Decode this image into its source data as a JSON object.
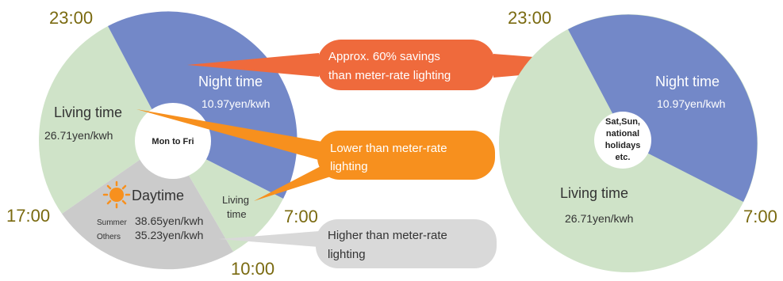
{
  "colors": {
    "night": "#7388c8",
    "living": "#cfe3c8",
    "daytime": "#cbcbcb",
    "callout_savings": "#ef6a3c",
    "callout_lower": "#f7901e",
    "callout_higher": "#d9d9d9",
    "hour_text": "#7a6a10",
    "sun": "#f7901e",
    "moon": "#f6d93c"
  },
  "left_dial": {
    "center_label": "Mon to Fri",
    "hours": {
      "h23": "23:00",
      "h17": "17:00",
      "h7": "7:00",
      "h10": "10:00"
    },
    "night": {
      "label": "Night time",
      "rate": "10.97yen/kwh"
    },
    "living_evening": {
      "label": "Living time",
      "rate": "26.71yen/kwh"
    },
    "living_morning": {
      "label_line1": "Living",
      "label_line2": "time"
    },
    "daytime": {
      "label": "Daytime",
      "summer_label": "Summer",
      "summer_rate": "38.65yen/kwh",
      "others_label": "Others",
      "others_rate": "35.23yen/kwh"
    }
  },
  "right_dial": {
    "center_lines": [
      "Sat,Sun,",
      "national",
      "holidays",
      "etc."
    ],
    "hours": {
      "h23": "23:00",
      "h7": "7:00"
    },
    "night": {
      "label": "Night time",
      "rate": "10.97yen/kwh"
    },
    "living": {
      "label": "Living time",
      "rate": "26.71yen/kwh"
    }
  },
  "callouts": {
    "savings": {
      "line1": "Approx. 60% savings",
      "line2": "than  meter-rate lighting"
    },
    "lower": {
      "line1": "Lower than meter-rate",
      "line2": "lighting"
    },
    "higher": {
      "line1": "Higher than meter-rate",
      "line2": "lighting"
    }
  }
}
